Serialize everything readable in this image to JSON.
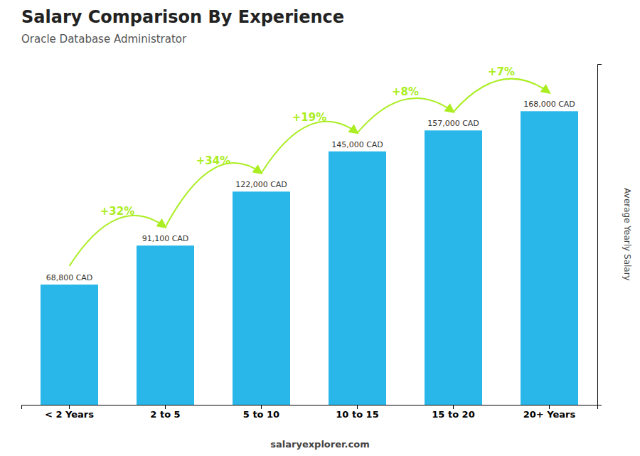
{
  "chart_data": {
    "type": "bar",
    "title": "Salary Comparison By Experience",
    "subtitle": "Oracle Database Administrator",
    "ylabel": "Average Yearly Salary",
    "categories": [
      "< 2 Years",
      "2 to 5",
      "5 to 10",
      "10 to 15",
      "15 to 20",
      "20+ Years"
    ],
    "values": [
      68800,
      91100,
      122000,
      145000,
      157000,
      168000
    ],
    "value_labels": [
      "68,800 CAD",
      "91,100 CAD",
      "122,000 CAD",
      "145,000 CAD",
      "157,000 CAD",
      "168,000 CAD"
    ],
    "data_labels": true,
    "color": "#29b6e8",
    "ylim": [
      0,
      195000
    ],
    "yticks": [],
    "tick_labels": "x",
    "grid": false,
    "annotations": [
      {
        "text": "+32%",
        "color": "#aaee22"
      },
      {
        "text": "+34%",
        "color": "#aaee22"
      },
      {
        "text": "+19%",
        "color": "#aaee22"
      },
      {
        "text": "+8%",
        "color": "#aaee22"
      },
      {
        "text": "+7%",
        "color": "#aaee22"
      }
    ],
    "footer": "salaryexplorer.com"
  }
}
